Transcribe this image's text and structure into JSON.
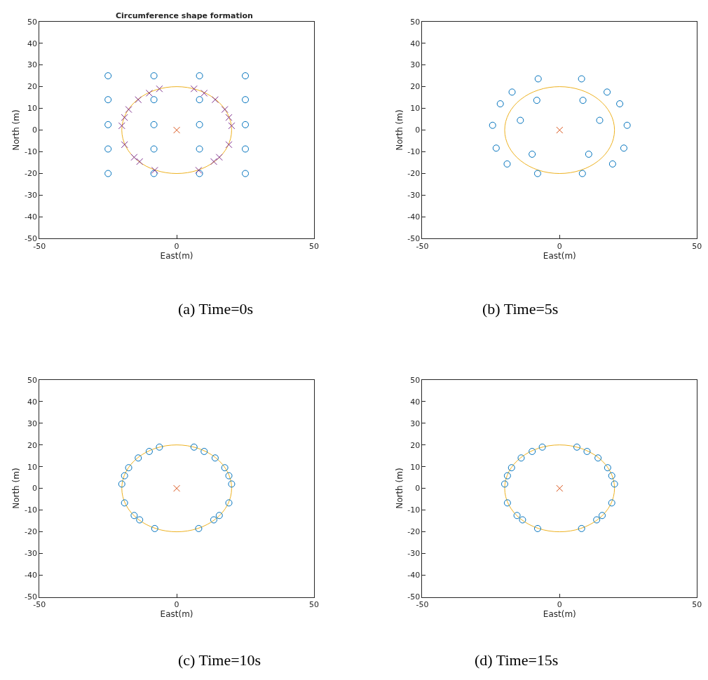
{
  "chart_data": [
    {
      "type": "scatter",
      "title": "Circumference shape formation",
      "xlabel": "East(m)",
      "ylabel": "North (m)",
      "xlim": [
        -50,
        50
      ],
      "ylim": [
        -50,
        50
      ],
      "xticks": [
        -50,
        0,
        50
      ],
      "yticks": [
        -50,
        -40,
        -30,
        -20,
        -10,
        0,
        10,
        20,
        30,
        40,
        50
      ],
      "grid": false,
      "annotations": [
        "(a) Time=0s"
      ],
      "series": [
        {
          "color": "#0072bd",
          "marker": "circle",
          "x": [
            -25,
            -8.3,
            8.3,
            25,
            -25,
            -8.3,
            8.3,
            25,
            -25,
            -8.3,
            8.3,
            25,
            -25,
            -8.3,
            8.3,
            25,
            -25,
            -8.3,
            8.3,
            25
          ],
          "values": [
            25,
            25,
            25,
            25,
            14,
            14,
            14,
            14,
            2.5,
            2.5,
            2.5,
            2.5,
            -8.7,
            -8.7,
            -8.7,
            -8.7,
            -20,
            -20,
            -20,
            -20
          ]
        },
        {
          "color": "#7e2f8e",
          "marker": "cross",
          "x": [
            -20,
            -19,
            -17.5,
            -14,
            -10,
            -6.3,
            6.3,
            10,
            14,
            17.5,
            19,
            20,
            19,
            15.5,
            13.5,
            8,
            -8,
            -13.5,
            -15.5,
            -19
          ],
          "values": [
            2,
            5.8,
            9.5,
            14,
            17,
            19,
            19,
            17,
            14,
            9.5,
            5.8,
            2,
            -6.7,
            -12.5,
            -14.5,
            -18.5,
            -18.5,
            -14.5,
            -12.5,
            -6.7
          ]
        },
        {
          "color": "#d95319",
          "marker": "cross",
          "x": [
            0
          ],
          "values": [
            0
          ]
        }
      ]
    },
    {
      "type": "scatter",
      "xlabel": "East(m)",
      "ylabel": "North (m)",
      "xlim": [
        -50,
        50
      ],
      "ylim": [
        -50,
        50
      ],
      "xticks": [
        -50,
        0,
        50
      ],
      "yticks": [
        -50,
        -40,
        -30,
        -20,
        -10,
        0,
        10,
        20,
        30,
        40,
        50
      ],
      "grid": false,
      "annotations": [
        "(b) Time=5s"
      ],
      "series": [
        {
          "color": "#0072bd",
          "marker": "circle",
          "x": [
            -7.8,
            8,
            -17.3,
            17.3,
            -21.6,
            21.9,
            -8.3,
            8.5,
            -14.3,
            14.6,
            -24.4,
            24.6,
            -23.1,
            23.4,
            -10,
            10.6,
            -19.1,
            19.3,
            -8,
            8.3
          ],
          "values": [
            23.6,
            23.6,
            17.5,
            17.5,
            12.1,
            12.1,
            13.7,
            13.7,
            4.5,
            4.5,
            2.2,
            2.2,
            -8.3,
            -8.3,
            -11.1,
            -11.1,
            -15.6,
            -15.6,
            -20,
            -20
          ]
        },
        {
          "color": "#d95319",
          "marker": "cross",
          "x": [
            0
          ],
          "values": [
            0
          ]
        }
      ]
    },
    {
      "type": "scatter",
      "xlabel": "East(m)",
      "ylabel": "North (m)",
      "xlim": [
        -50,
        50
      ],
      "ylim": [
        -50,
        50
      ],
      "xticks": [
        -50,
        0,
        50
      ],
      "yticks": [
        -50,
        -40,
        -30,
        -20,
        -10,
        0,
        10,
        20,
        30,
        40,
        50
      ],
      "grid": false,
      "annotations": [
        "(c) Time=10s"
      ],
      "series": [
        {
          "color": "#0072bd",
          "marker": "circle",
          "x": [
            -20,
            -19,
            -17.5,
            -14,
            -10,
            -6.3,
            6.3,
            10,
            14,
            17.5,
            19,
            20,
            19,
            15.5,
            13.5,
            8,
            -8,
            -13.5,
            -15.5,
            -19
          ],
          "values": [
            2,
            5.8,
            9.5,
            14,
            17,
            19,
            19,
            17,
            14,
            9.5,
            5.8,
            2,
            -6.7,
            -12.5,
            -14.5,
            -18.5,
            -18.5,
            -14.5,
            -12.5,
            -6.7
          ]
        },
        {
          "color": "#d95319",
          "marker": "cross",
          "x": [
            0
          ],
          "values": [
            0
          ]
        }
      ]
    },
    {
      "type": "scatter",
      "xlabel": "East(m)",
      "ylabel": "North (m)",
      "xlim": [
        -50,
        50
      ],
      "ylim": [
        -50,
        50
      ],
      "xticks": [
        -50,
        0,
        50
      ],
      "yticks": [
        -50,
        -40,
        -30,
        -20,
        -10,
        0,
        10,
        20,
        30,
        40,
        50
      ],
      "grid": false,
      "annotations": [
        "(d) Time=15s"
      ],
      "series": [
        {
          "color": "#0072bd",
          "marker": "circle",
          "x": [
            -20,
            -19,
            -17.5,
            -14,
            -10,
            -6.3,
            6.3,
            10,
            14,
            17.5,
            19,
            20,
            19,
            15.5,
            13.5,
            8,
            -8,
            -13.5,
            -15.5,
            -19
          ],
          "values": [
            2,
            5.8,
            9.5,
            14,
            17,
            19,
            19,
            17,
            14,
            9.5,
            5.8,
            2,
            -6.7,
            -12.5,
            -14.5,
            -18.5,
            -18.5,
            -14.5,
            -12.5,
            -6.7
          ]
        },
        {
          "color": "#d95319",
          "marker": "cross",
          "x": [
            0
          ],
          "values": [
            0
          ]
        }
      ]
    }
  ]
}
